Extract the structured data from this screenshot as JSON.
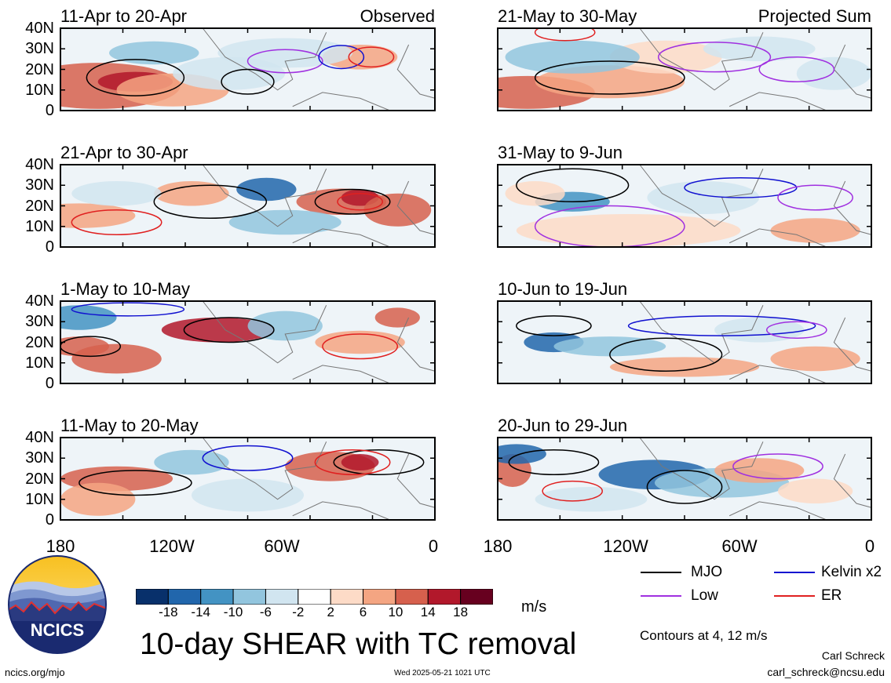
{
  "panels": [
    {
      "title": "11-Apr to 20-Apr",
      "tag": "Observed"
    },
    {
      "title": "21-May to 30-May",
      "tag": "Projected Sum"
    },
    {
      "title": "21-Apr to 30-Apr",
      "tag": ""
    },
    {
      "title": "31-May to 9-Jun",
      "tag": ""
    },
    {
      "title": "1-May to 10-May",
      "tag": ""
    },
    {
      "title": "10-Jun to 19-Jun",
      "tag": ""
    },
    {
      "title": "11-May to 20-May",
      "tag": ""
    },
    {
      "title": "20-Jun to 29-Jun",
      "tag": ""
    }
  ],
  "y_ticks": [
    "40N",
    "30N",
    "20N",
    "10N",
    "0"
  ],
  "x_ticks": [
    "180",
    "120W",
    "60W",
    "0"
  ],
  "colorbar": {
    "labels": [
      "-18",
      "-14",
      "-10",
      "-6",
      "-2",
      "2",
      "6",
      "10",
      "14",
      "18"
    ],
    "colors": [
      "#08306b",
      "#2166ac",
      "#4393c3",
      "#92c5de",
      "#d1e5f0",
      "#ffffff",
      "#fddbc7",
      "#f4a582",
      "#d6604d",
      "#b2182b",
      "#67001f"
    ],
    "units": "m/s"
  },
  "legend": {
    "mjo": {
      "label": "MJO",
      "color": "#000000"
    },
    "kelvin": {
      "label": "Kelvin x2",
      "color": "#1010d0"
    },
    "low": {
      "label": "Low",
      "color": "#a030e0"
    },
    "er": {
      "label": "ER",
      "color": "#e02020"
    }
  },
  "contours_note": "Contours at 4, 12 m/s",
  "main_title": "10-day SHEAR with TC removal",
  "logo_text": "NCICS",
  "url": "ncics.org/mjo",
  "timestamp": "Wed 2025-05-21 1021 UTC",
  "author": "Carl Schreck",
  "email": "carl_schreck@ncsu.edu"
}
